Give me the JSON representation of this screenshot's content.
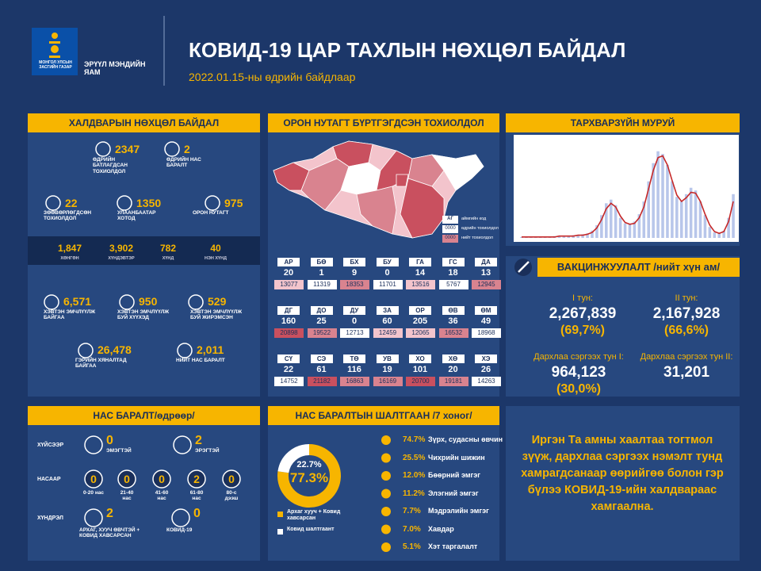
{
  "header": {
    "gov": "МОНГОЛ УЛСЫН ЗАСГИЙН ГАЗАР",
    "ministry": "ЭРҮҮЛ МЭНДИЙН ЯАМ",
    "title": "КОВИД-19 ЦАР ТАХЛЫН НӨХЦӨЛ БАЙДАЛ",
    "date": "2022.01.15-ны өдрийн байдлаар"
  },
  "infection": {
    "title": "ХАЛДВАРЫН НӨХЦӨЛ БАЙДАЛ",
    "top_stats": [
      {
        "value": "2347",
        "label": "ӨДРИЙН БАТЛАГДСАН ТОХИОЛДОЛ"
      },
      {
        "value": "2",
        "label": "ӨДРИЙН НАС БАРАЛТ"
      },
      {
        "value": "22",
        "label": "ЗӨӨВӨРЛӨГДСӨН ТОХИОЛДОЛ"
      },
      {
        "value": "1350",
        "label": "УЛААНБААТАР ХОТОД"
      },
      {
        "value": "975",
        "label": "ОРОН НУТАГТ"
      }
    ],
    "severity": [
      {
        "value": "1,847",
        "label": "ХӨНГӨН"
      },
      {
        "value": "3,902",
        "label": "ХҮНДЭВТЭР"
      },
      {
        "value": "782",
        "label": "ХҮНД"
      },
      {
        "value": "40",
        "label": "НЭН ХҮНД"
      }
    ],
    "hospital_stats": [
      {
        "value": "6,571",
        "label": "ХЭВТЭН ЭМЧЛҮҮЛЖ БАЙГАА"
      },
      {
        "value": "950",
        "label": "ХЭВТЭН ЭМЧЛҮҮЛЖ БУЙ ХҮҮХЭД"
      },
      {
        "value": "529",
        "label": "ХЭВТЭН ЭМЧЛҮҮЛЖ БУЙ ЖИРЭМСЭН"
      },
      {
        "value": "26,478",
        "label": "ГЭРИЙН ХЯНАЛТАД БАЙГАА"
      },
      {
        "value": "2,011",
        "label": "НИЙТ НАС БАРАЛТ"
      }
    ]
  },
  "regions": {
    "title": "ОРОН НУТАГТ БҮРТГЭГДСЭН ТОХИОЛДОЛ",
    "legend": {
      "code": "АГ",
      "daily": "0000",
      "total": "0000",
      "code_label": "аймгийн код",
      "daily_label": "өдрийн тохиолдол",
      "total_label": "нийт тохиолдол"
    },
    "rows": [
      [
        {
          "code": "АР",
          "daily": "20",
          "total": "13077",
          "color": "#f3c4cc"
        },
        {
          "code": "БӨ",
          "daily": "1",
          "total": "11319",
          "color": "#ffffff"
        },
        {
          "code": "БХ",
          "daily": "9",
          "total": "18353",
          "color": "#d9838f"
        },
        {
          "code": "БУ",
          "daily": "0",
          "total": "11701",
          "color": "#ffffff"
        },
        {
          "code": "ГА",
          "daily": "14",
          "total": "13516",
          "color": "#f3c4cc"
        },
        {
          "code": "ГС",
          "daily": "18",
          "total": "5767",
          "color": "#ffffff"
        },
        {
          "code": "ДА",
          "daily": "13",
          "total": "12945",
          "color": "#d9838f"
        }
      ],
      [
        {
          "code": "ДГ",
          "daily": "160",
          "total": "20898",
          "color": "#c9505f"
        },
        {
          "code": "ДО",
          "daily": "25",
          "total": "19522",
          "color": "#d9838f"
        },
        {
          "code": "ДУ",
          "daily": "0",
          "total": "12713",
          "color": "#ffffff"
        },
        {
          "code": "ЗА",
          "daily": "60",
          "total": "12459",
          "color": "#f3c4cc"
        },
        {
          "code": "ОР",
          "daily": "205",
          "total": "12065",
          "color": "#f3c4cc"
        },
        {
          "code": "ӨВ",
          "daily": "36",
          "total": "16532",
          "color": "#d9838f"
        },
        {
          "code": "ӨМ",
          "daily": "49",
          "total": "18968",
          "color": "#ffffff"
        }
      ],
      [
        {
          "code": "СҮ",
          "daily": "22",
          "total": "14752",
          "color": "#ffffff"
        },
        {
          "code": "СЭ",
          "daily": "61",
          "total": "21182",
          "color": "#c9505f"
        },
        {
          "code": "ТӨ",
          "daily": "116",
          "total": "16863",
          "color": "#d9838f"
        },
        {
          "code": "УВ",
          "daily": "19",
          "total": "16169",
          "color": "#d9838f"
        },
        {
          "code": "ХО",
          "daily": "101",
          "total": "20700",
          "color": "#c9505f"
        },
        {
          "code": "ХӨ",
          "daily": "20",
          "total": "19181",
          "color": "#d9838f"
        },
        {
          "code": "ХЭ",
          "daily": "26",
          "total": "14263",
          "color": "#ffffff"
        }
      ]
    ]
  },
  "chart_data": {
    "type": "bar",
    "title": "ТАРХВАРЗҮЙН МУРУЙ",
    "ylim": [
      0,
      100
    ],
    "series": [
      {
        "type": "bar",
        "color": "#b8c6ea",
        "values": [
          1,
          1,
          1,
          1,
          1,
          1,
          1,
          2,
          2,
          2,
          2,
          3,
          3,
          4,
          5,
          8,
          14,
          25,
          38,
          42,
          36,
          22,
          16,
          15,
          18,
          26,
          40,
          62,
          82,
          95,
          92,
          80,
          62,
          45,
          40,
          48,
          55,
          52,
          40,
          25,
          12,
          6,
          5,
          8,
          22,
          48
        ]
      },
      {
        "type": "line",
        "color": "#c62828",
        "values": [
          1,
          1,
          1,
          1,
          1,
          1,
          1,
          1,
          2,
          2,
          2,
          2,
          3,
          3,
          4,
          6,
          11,
          20,
          32,
          38,
          34,
          24,
          17,
          15,
          16,
          22,
          34,
          54,
          74,
          88,
          90,
          80,
          63,
          47,
          40,
          44,
          50,
          49,
          40,
          26,
          14,
          7,
          5,
          7,
          18,
          40
        ]
      }
    ]
  },
  "vaccination": {
    "title": "ВАКЦИНЖУУЛАЛТ /нийт хүн ам/",
    "doses": [
      {
        "label": "I тун:",
        "value": "2,267,839",
        "percent": "(69,7%)"
      },
      {
        "label": "II тун:",
        "value": "2,167,928",
        "percent": "(66,6%)"
      },
      {
        "label": "Дархлаа сэргээх тун I:",
        "value": "964,123",
        "percent": "(30,0%)"
      },
      {
        "label": "Дархлаа сэргээх тун II:",
        "value": "31,201"
      }
    ]
  },
  "deaths": {
    "title": "НАС БАРАЛТ/өдрөөр/",
    "groups": [
      {
        "label": "ХҮЙСЭЭР",
        "items": [
          {
            "value": "0",
            "label": "ЭМЭГТЭЙ"
          },
          {
            "value": "2",
            "label": "ЭРЭГТЭЙ"
          }
        ]
      },
      {
        "label": "НАСААР",
        "items": [
          {
            "value": "0",
            "label": "0-20 нас"
          },
          {
            "value": "0",
            "label": "21-40 нас"
          },
          {
            "value": "0",
            "label": "41-60 нас"
          },
          {
            "value": "2",
            "label": "61-80 нас"
          },
          {
            "value": "0",
            "label": "80-с дээш"
          }
        ]
      },
      {
        "label": "ХҮНДРЭЛ",
        "items": [
          {
            "value": "2",
            "label": "АРХАГ, ХУУЧ ӨВЧТЭЙ + КОВИД ХАВСАРСАН"
          },
          {
            "value": "0",
            "label": "КОВИД-19"
          }
        ]
      }
    ]
  },
  "causes": {
    "title": "НАС БАРАЛТЫН ШАЛТГААН /7 хоног/",
    "donut": {
      "series": [
        {
          "name": "Архаг хууч + Ковид хавсарсан",
          "color": "#f7b500",
          "value": 77.3,
          "value_label": "77.3%"
        },
        {
          "name": "Ковид шалтгаант",
          "color": "#ffffff",
          "value": 22.7,
          "value_label": "22.7%"
        }
      ]
    },
    "list": [
      {
        "percent": "74.7%",
        "label": "Зүрх, судасны өвчин"
      },
      {
        "percent": "25.5%",
        "label": "Чихрийн шижин"
      },
      {
        "percent": "12.0%",
        "label": "Бөөрний эмгэг"
      },
      {
        "percent": "11.2%",
        "label": "Элэгний эмгэг"
      },
      {
        "percent": "7.7%",
        "label": "Мэдрэлийн эмгэг"
      },
      {
        "percent": "7.0%",
        "label": "Хавдар"
      },
      {
        "percent": "5.1%",
        "label": "Хэт таргалалт"
      }
    ]
  },
  "message": "Иргэн Та амны хаалтаа тогтмол зүүж, дархлаа сэргээх нэмэлт тунд хамрагдсанаар өөрийгөө болон гэр бүлээ КОВИД-19-ийн халдвараас хамгаална."
}
